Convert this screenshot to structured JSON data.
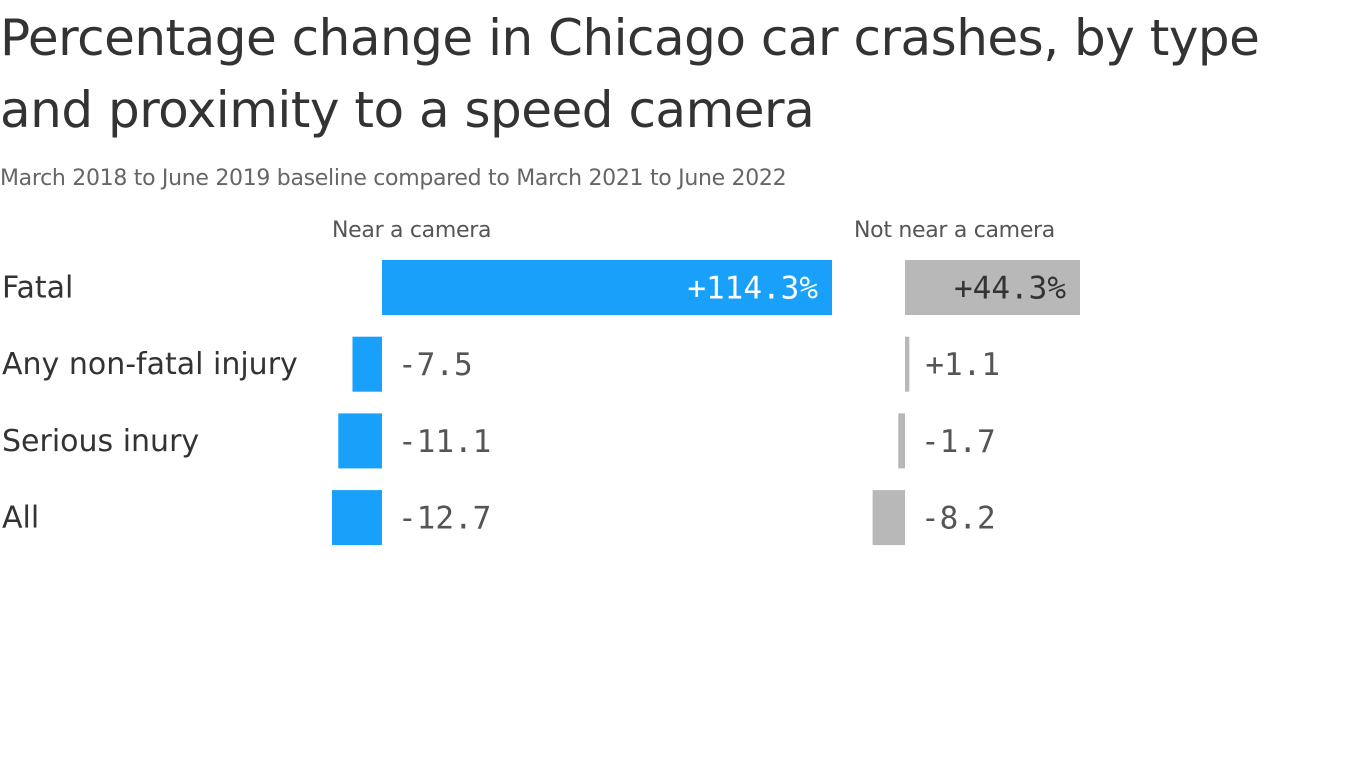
{
  "chart_data": {
    "type": "bar",
    "title": "Percentage change in Chicago car crashes, by type and proximity to a speed camera",
    "subtitle": "March 2018 to June 2019 baseline compared to March 2021 to June 2022",
    "categories": [
      "Fatal",
      "Any non-fatal injury",
      "Serious inury",
      "All"
    ],
    "series": [
      {
        "name": "Near a camera",
        "values": [
          114.3,
          -7.5,
          -11.1,
          -12.7
        ],
        "labels": [
          "+114.3%",
          "-7.5",
          "-11.1",
          "-12.7"
        ],
        "color": "#18a0fb"
      },
      {
        "name": "Not near a camera",
        "values": [
          44.3,
          1.1,
          -1.7,
          -8.2
        ],
        "labels": [
          "+44.3%",
          "+1.1",
          "-1.7",
          "-8.2"
        ],
        "color": "#b8b8b8"
      }
    ],
    "grid": false,
    "legend": "panel headers"
  }
}
